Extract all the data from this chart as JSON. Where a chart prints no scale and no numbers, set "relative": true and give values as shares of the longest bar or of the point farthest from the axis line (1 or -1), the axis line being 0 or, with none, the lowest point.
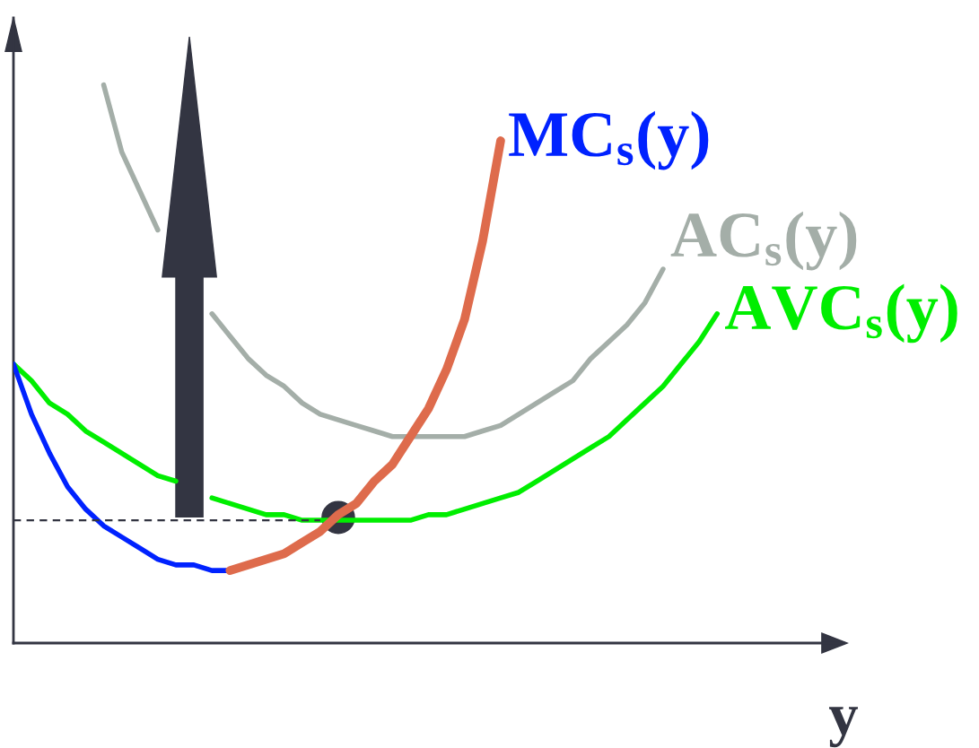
{
  "chart_data": {
    "type": "line",
    "relative": true,
    "xlabel": "y",
    "grid": false,
    "legend": false,
    "marker": "none",
    "categories": [
      null,
      null,
      null,
      null,
      null,
      null,
      null,
      null,
      null,
      null,
      null,
      null,
      null,
      null,
      null,
      null,
      null,
      null,
      null,
      null,
      null,
      null,
      null,
      null,
      null,
      null,
      null,
      null,
      null,
      null,
      null,
      null,
      null,
      null,
      null,
      null,
      null,
      null,
      null,
      null,
      null,
      null,
      null,
      null,
      null,
      null,
      null
    ],
    "series": [
      {
        "name": "AC$_{s}$(y)",
        "color": "#a4aea8",
        "values": [
          null,
          null,
          null,
          null,
          null,
          1.0,
          0.88,
          0.81,
          0.74,
          null,
          null,
          0.59,
          0.55,
          0.51,
          0.48,
          0.46,
          0.43,
          0.41,
          0.4,
          0.39,
          0.38,
          0.37,
          0.37,
          0.37,
          0.37,
          0.37,
          0.38,
          0.39,
          0.41,
          0.43,
          0.45,
          0.47,
          0.51,
          0.54,
          0.57,
          0.61,
          0.67,
          null,
          null,
          null,
          null,
          null,
          null,
          null,
          null,
          null,
          null
        ]
      },
      {
        "name": "AVC$_{s}$(y)",
        "color": "#00ee00",
        "values": [
          0.5,
          0.47,
          0.43,
          0.41,
          0.38,
          0.36,
          0.34,
          0.32,
          0.3,
          0.29,
          null,
          0.26,
          0.25,
          0.24,
          0.23,
          0.23,
          0.22,
          0.22,
          0.22,
          0.22,
          0.22,
          0.22,
          0.22,
          0.23,
          0.23,
          0.24,
          0.25,
          0.26,
          0.27,
          0.29,
          0.31,
          0.33,
          0.35,
          0.37,
          0.4,
          0.43,
          0.46,
          0.5,
          0.54,
          0.59,
          null,
          null,
          null,
          null,
          null,
          null,
          null
        ]
      },
      {
        "name": "MC$_{s}$(y)",
        "color": "#0022ff",
        "values": [
          0.5,
          0.41,
          0.34,
          0.28,
          0.24,
          0.21,
          0.19,
          0.17,
          0.15,
          0.14,
          0.14,
          0.13,
          0.13,
          null,
          null,
          null,
          null,
          null,
          null,
          null,
          null,
          null,
          null,
          null,
          null,
          null,
          null,
          null,
          null,
          null,
          null,
          null,
          null,
          null,
          null,
          null,
          null,
          null,
          null,
          null,
          null,
          null,
          null,
          null,
          null,
          null,
          null
        ]
      },
      {
        "color": "#de6b4c",
        "values": [
          null,
          null,
          null,
          null,
          null,
          null,
          null,
          null,
          null,
          null,
          null,
          null,
          0.13,
          0.14,
          0.15,
          0.16,
          0.18,
          0.2,
          0.23,
          0.25,
          0.29,
          0.32,
          0.37,
          0.42,
          0.49,
          0.58,
          0.72,
          0.9,
          null,
          null,
          null,
          null,
          null,
          null,
          null,
          null,
          null,
          null,
          null,
          null,
          null,
          null,
          null,
          null,
          null,
          null,
          null
        ]
      },
      {
        "color": "#333542",
        "line_style": "dashed",
        "values": [
          0.22,
          0.22,
          0.22,
          0.22,
          0.22,
          0.22,
          0.22,
          0.22,
          0.22,
          0.22,
          0.22,
          0.22,
          0.22,
          0.22,
          0.22,
          0.22,
          0.22,
          0.22,
          null,
          null,
          null,
          null,
          null,
          null,
          null,
          null,
          null,
          null,
          null,
          null,
          null,
          null,
          null,
          null,
          null,
          null,
          null,
          null,
          null,
          null,
          null,
          null,
          null,
          null,
          null,
          null,
          null
        ]
      }
    ]
  }
}
